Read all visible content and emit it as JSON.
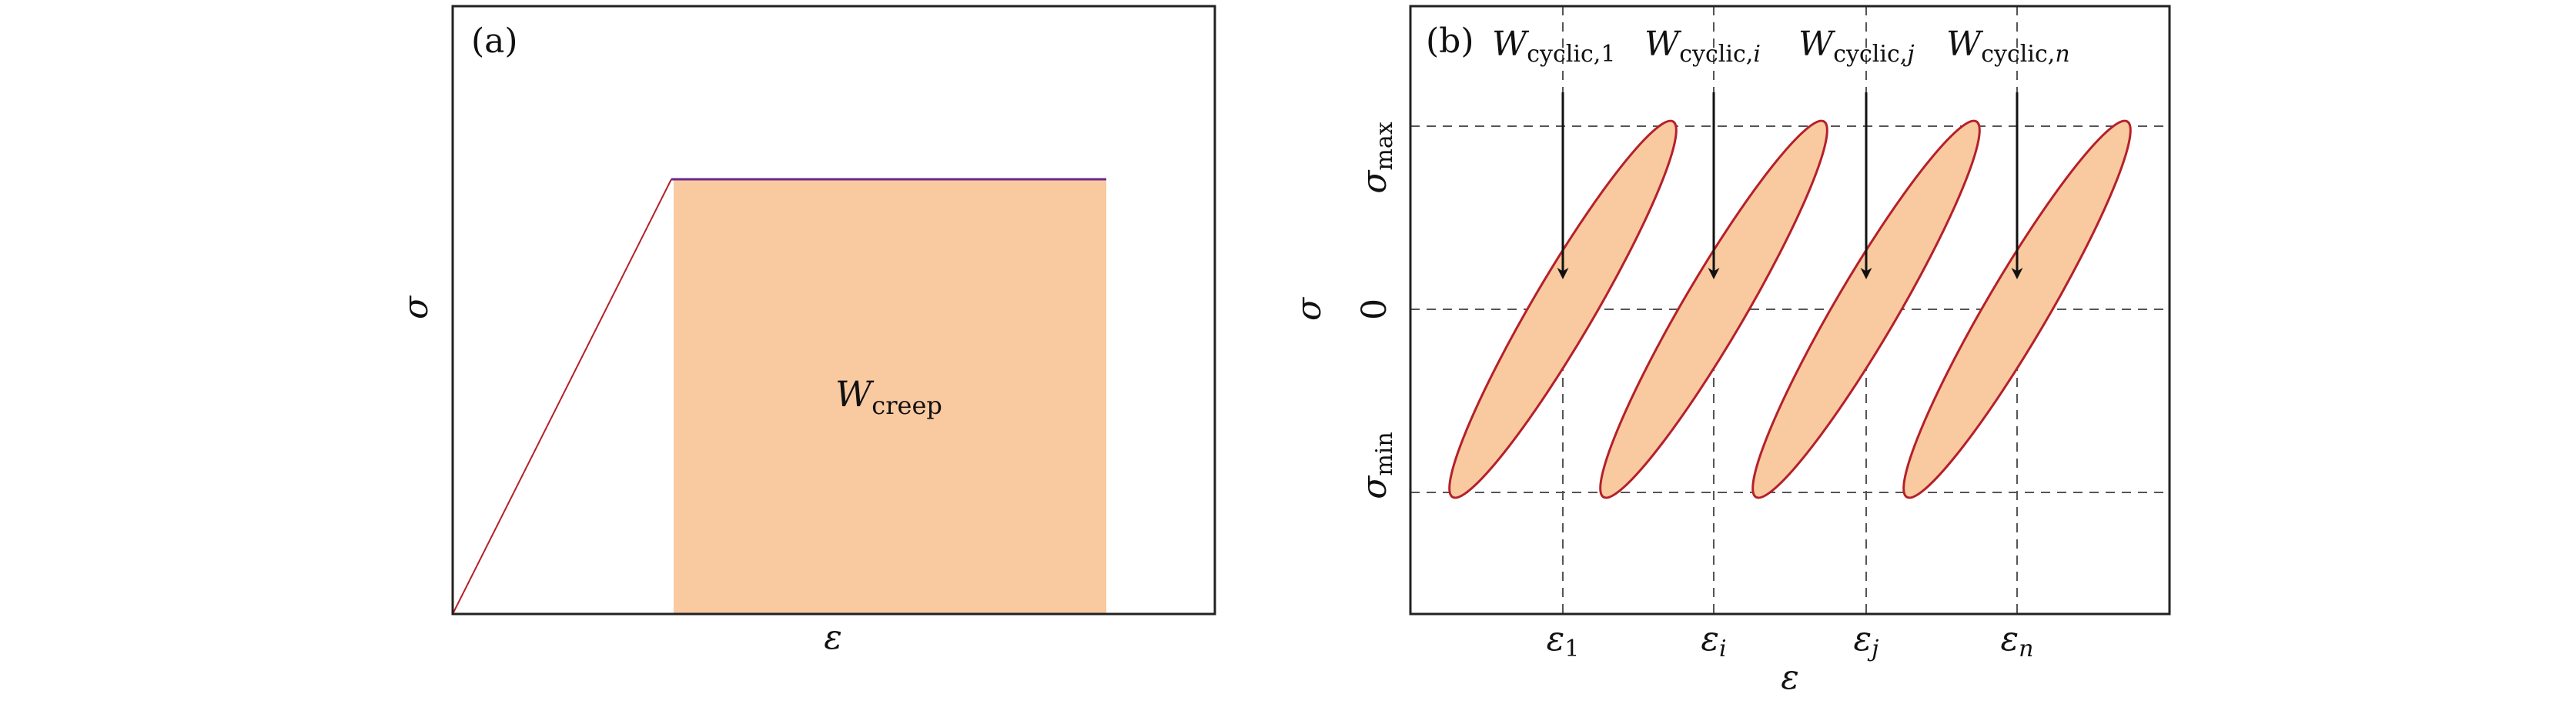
{
  "colors": {
    "fill": "#f9c9a0",
    "outline": "#b5202a",
    "plateau": "#6a2a8c",
    "frame": "#222222",
    "dashed": "#555555",
    "arrow": "#111111"
  },
  "panel_a": {
    "tag": "(a)",
    "y_symbol": "σ",
    "x_symbol": "ε",
    "area": {
      "main": "W",
      "sub": "creep"
    }
  },
  "panel_b": {
    "tag": "(b)",
    "y_symbol": "σ",
    "x_symbol": "ε",
    "y_levels": [
      {
        "main": "σ",
        "sub": "max"
      },
      {
        "main": "0",
        "sub": ""
      },
      {
        "main": "σ",
        "sub": "min"
      }
    ],
    "cycles": [
      {
        "w_main": "W",
        "w_sub": "cyclic,",
        "w_idx": "1",
        "e_main": "ε",
        "e_sub": "1"
      },
      {
        "w_main": "W",
        "w_sub": "cyclic,",
        "w_idx": "i",
        "e_main": "ε",
        "e_sub": "i"
      },
      {
        "w_main": "W",
        "w_sub": "cyclic,",
        "w_idx": "j",
        "e_main": "ε",
        "e_sub": "j"
      },
      {
        "w_main": "W",
        "w_sub": "cyclic,",
        "w_idx": "n",
        "e_main": "ε",
        "e_sub": "n"
      }
    ]
  }
}
